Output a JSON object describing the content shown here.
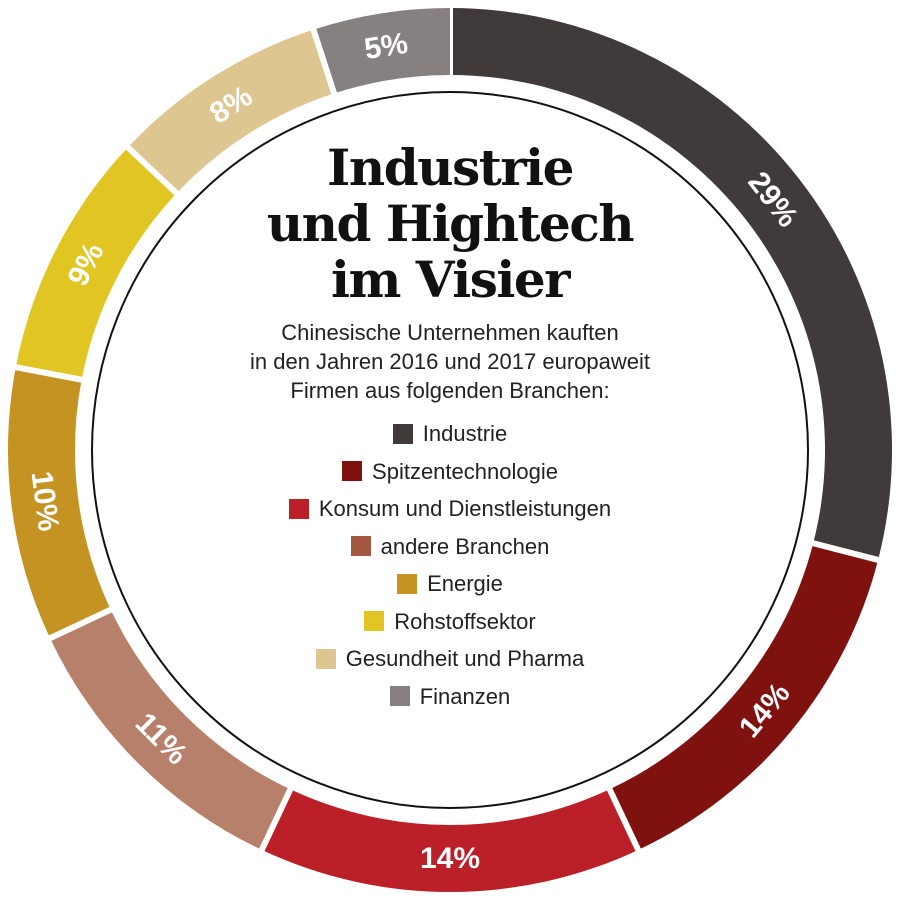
{
  "chart_data": {
    "type": "pie",
    "variant": "donut",
    "title": "Industrie und Hightech im Visier",
    "subtitle": "Chinesische Unternehmen kauften in den Jahren 2016 und 2017 europaweit Firmen aus folgenden Branchen:",
    "categories": [
      "Industrie",
      "Spitzentechnologie",
      "Konsum und Dienstleistungen",
      "andere Branchen",
      "Energie",
      "Rohstoffsektor",
      "Gesundheit und Pharma",
      "Finanzen"
    ],
    "values": [
      29,
      14,
      14,
      11,
      10,
      9,
      8,
      5
    ],
    "unit": "%",
    "start_angle": "12 o'clock",
    "direction": "clockwise",
    "legend_position": "center"
  },
  "title_lines": [
    "Industrie",
    "und Hightech",
    "im Visier"
  ],
  "subtitle_lines": [
    "Chinesische Unternehmen kauften",
    "in den Jahren 2016 und 2017 europaweit",
    "Firmen aus folgenden Branchen:"
  ],
  "segments": [
    {
      "name": "Industrie",
      "value": 29,
      "label": "29%",
      "color": "#403a3a"
    },
    {
      "name": "Spitzentechnologie",
      "value": 14,
      "label": "14%",
      "color": "#7f120e"
    },
    {
      "name": "Konsum und Dienstleistungen",
      "value": 14,
      "label": "14%",
      "color": "#bb1f28"
    },
    {
      "name": "andere Branchen",
      "value": 11,
      "label": "11%",
      "color": "#b7806b"
    },
    {
      "name": "Energie",
      "value": 10,
      "label": "10%",
      "color": "#c59321"
    },
    {
      "name": "Rohstoffsektor",
      "value": 9,
      "label": "9%",
      "color": "#e1c522"
    },
    {
      "name": "Gesundheit und Pharma",
      "value": 8,
      "label": "8%",
      "color": "#dec691"
    },
    {
      "name": "Finanzen",
      "value": 5,
      "label": "5%",
      "color": "#878080"
    }
  ],
  "legend": [
    {
      "label": "Industrie",
      "color": "#403a3a"
    },
    {
      "label": "Spitzentechnologie",
      "color": "#7f120e"
    },
    {
      "label": "Konsum und Dienstleistungen",
      "color": "#bb1f28"
    },
    {
      "label": "andere Branchen",
      "color": "#a4573f"
    },
    {
      "label": "Energie",
      "color": "#c59321"
    },
    {
      "label": "Rohstoffsektor",
      "color": "#e1c522"
    },
    {
      "label": "Gesundheit und Pharma",
      "color": "#dec691"
    },
    {
      "label": "Finanzen",
      "color": "#878080"
    }
  ]
}
